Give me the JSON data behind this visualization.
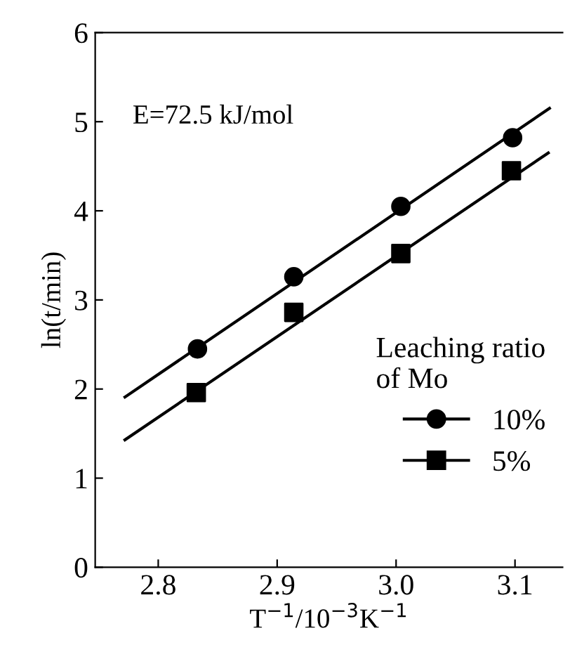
{
  "chart_data": {
    "type": "scatter",
    "xlabel": "T$^{−1}$/10$^{−3}$K$^{−1}$",
    "ylabel": "ln(t/min)",
    "annotations": [
      "E=72.5 kJ/mol"
    ],
    "legend_title": "Leaching ratio\nof Mo",
    "legend": "right",
    "xlim": [
      2.747,
      3.14
    ],
    "xticks": [
      {
        "value": 2.8,
        "label": "2.8"
      },
      {
        "value": 2.9,
        "label": "2.9"
      },
      {
        "value": 3.0,
        "label": "3.0"
      },
      {
        "value": 3.1,
        "label": "3.1"
      }
    ],
    "ylim": [
      0,
      6
    ],
    "yticks": [
      0,
      1,
      2,
      3,
      4,
      5,
      6
    ],
    "grid": false,
    "series": [
      {
        "name": "10%",
        "color": "#000000",
        "marker": "circle",
        "x": [
          2.833,
          2.914,
          3.004,
          3.098
        ],
        "values": [
          2.45,
          3.26,
          4.05,
          4.82
        ]
      },
      {
        "name": "5%",
        "color": "#000000",
        "marker": "square",
        "x": [
          2.832,
          2.914,
          3.004,
          3.097
        ],
        "values": [
          1.96,
          2.86,
          3.52,
          4.45
        ]
      },
      {
        "type": "line",
        "color": "#000000",
        "line_style": "solid",
        "x": [
          2.772,
          3.129
        ],
        "values": [
          1.91,
          5.15
        ]
      },
      {
        "type": "line",
        "color": "#000000",
        "line_style": "solid",
        "x": [
          2.772,
          3.128
        ],
        "values": [
          1.43,
          4.65
        ]
      }
    ]
  }
}
